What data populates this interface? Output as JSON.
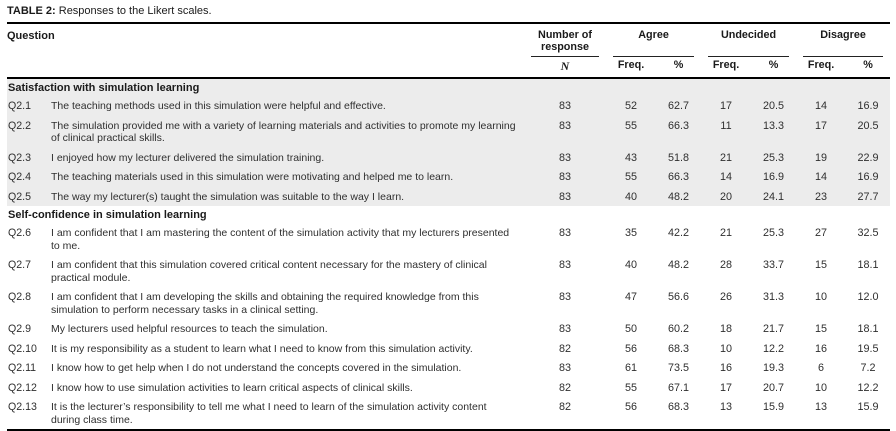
{
  "page": {
    "caption_label": "TABLE 2:",
    "caption_text": " Responses to the Likert scales."
  },
  "header": {
    "question": "Question",
    "groups": [
      {
        "name": "number-of-response",
        "label": "Number of response",
        "subs": [
          "N"
        ]
      },
      {
        "name": "agree",
        "label": "Agree",
        "subs": [
          "Freq.",
          "%"
        ]
      },
      {
        "name": "undecided",
        "label": "Undecided",
        "subs": [
          "Freq.",
          "%"
        ]
      },
      {
        "name": "disagree",
        "label": "Disagree",
        "subs": [
          "Freq.",
          "%"
        ]
      }
    ]
  },
  "sections": [
    {
      "title": "Satisfaction with simulation learning",
      "shaded": true,
      "rows": [
        {
          "id": "Q2.1",
          "question": "The teaching methods used in this simulation were helpful and effective.",
          "values": [
            "83",
            "52",
            "62.7",
            "17",
            "20.5",
            "14",
            "16.9"
          ]
        },
        {
          "id": "Q2.2",
          "question": "The simulation provided me with a variety of learning materials and activities to promote my learning of clinical practical skills.",
          "values": [
            "83",
            "55",
            "66.3",
            "11",
            "13.3",
            "17",
            "20.5"
          ]
        },
        {
          "id": "Q2.3",
          "question": "I enjoyed how my lecturer delivered the simulation training.",
          "values": [
            "83",
            "43",
            "51.8",
            "21",
            "25.3",
            "19",
            "22.9"
          ]
        },
        {
          "id": "Q2.4",
          "question": "The teaching materials used in this simulation were motivating and helped me to learn.",
          "values": [
            "83",
            "55",
            "66.3",
            "14",
            "16.9",
            "14",
            "16.9"
          ]
        },
        {
          "id": "Q2.5",
          "question": "The way my lecturer(s) taught the simulation was suitable to the way I learn.",
          "values": [
            "83",
            "40",
            "48.2",
            "20",
            "24.1",
            "23",
            "27.7"
          ]
        }
      ]
    },
    {
      "title": "Self-confidence in simulation learning",
      "shaded": false,
      "rows": [
        {
          "id": "Q2.6",
          "question": "I am confident that I am mastering the content of the simulation activity that my lecturers presented to me.",
          "values": [
            "83",
            "35",
            "42.2",
            "21",
            "25.3",
            "27",
            "32.5"
          ]
        },
        {
          "id": "Q2.7",
          "question": "I am confident that this simulation covered critical content necessary for the mastery of clinical practical module.",
          "values": [
            "83",
            "40",
            "48.2",
            "28",
            "33.7",
            "15",
            "18.1"
          ]
        },
        {
          "id": "Q2.8",
          "question": "I am confident that I am developing the skills and obtaining the required knowledge from this simulation to perform necessary tasks in a clinical setting.",
          "values": [
            "83",
            "47",
            "56.6",
            "26",
            "31.3",
            "10",
            "12.0"
          ]
        },
        {
          "id": "Q2.9",
          "question": "My lecturers used helpful resources to teach the simulation.",
          "values": [
            "83",
            "50",
            "60.2",
            "18",
            "21.7",
            "15",
            "18.1"
          ]
        },
        {
          "id": "Q2.10",
          "question": "It is my responsibility as a student to learn what I need to know from this simulation activity.",
          "values": [
            "82",
            "56",
            "68.3",
            "10",
            "12.2",
            "16",
            "19.5"
          ]
        },
        {
          "id": "Q2.11",
          "question": "I know how to get help when I do not understand the concepts covered in the simulation.",
          "values": [
            "83",
            "61",
            "73.5",
            "16",
            "19.3",
            "6",
            "7.2"
          ]
        },
        {
          "id": "Q2.12",
          "question": "I know how to use simulation activities to learn critical aspects of clinical skills.",
          "values": [
            "82",
            "55",
            "67.1",
            "17",
            "20.7",
            "10",
            "12.2"
          ]
        },
        {
          "id": "Q2.13",
          "question": "It is the lecturer’s responsibility to tell me what I need to learn of the simulation activity content during class time.",
          "values": [
            "82",
            "56",
            "68.3",
            "13",
            "15.9",
            "13",
            "15.9"
          ]
        }
      ]
    }
  ],
  "value_columns": [
    "n",
    "agree-freq",
    "agree-pct",
    "undecided-freq",
    "undecided-pct",
    "disagree-freq",
    "disagree-pct"
  ],
  "colors": {
    "shaded_section_bg": "#ececec",
    "text_color": "#2f2f2f",
    "rule_color": "#000000"
  }
}
